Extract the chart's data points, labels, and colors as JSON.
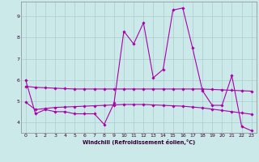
{
  "title": "",
  "xlabel": "Windchill (Refroidissement éolien,°C)",
  "ylabel": "",
  "xlim": [
    -0.5,
    23.5
  ],
  "ylim": [
    3.5,
    9.7
  ],
  "yticks": [
    4,
    5,
    6,
    7,
    8,
    9
  ],
  "xticks": [
    0,
    1,
    2,
    3,
    4,
    5,
    6,
    7,
    8,
    9,
    10,
    11,
    12,
    13,
    14,
    15,
    16,
    17,
    18,
    19,
    20,
    21,
    22,
    23
  ],
  "bg_color": "#cce9ea",
  "grid_color": "#aacccc",
  "line_color": "#aa00aa",
  "line1_x": [
    0,
    1,
    2,
    3,
    4,
    5,
    6,
    7,
    8,
    9,
    10,
    11,
    12,
    13,
    14,
    15,
    16,
    17,
    18,
    19,
    20,
    21,
    22,
    23
  ],
  "line1_y": [
    6.0,
    4.4,
    4.6,
    4.5,
    4.5,
    4.4,
    4.4,
    4.4,
    3.9,
    4.9,
    8.3,
    7.7,
    8.7,
    6.1,
    6.5,
    9.3,
    9.4,
    7.5,
    5.5,
    4.8,
    4.8,
    6.2,
    3.8,
    3.6
  ],
  "line2_x": [
    0,
    1,
    2,
    3,
    4,
    5,
    6,
    7,
    8,
    9,
    10,
    11,
    12,
    13,
    14,
    15,
    16,
    17,
    18,
    19,
    20,
    21,
    22,
    23
  ],
  "line2_y": [
    5.7,
    5.65,
    5.63,
    5.61,
    5.59,
    5.57,
    5.57,
    5.57,
    5.57,
    5.57,
    5.57,
    5.57,
    5.57,
    5.57,
    5.57,
    5.57,
    5.57,
    5.57,
    5.57,
    5.55,
    5.53,
    5.51,
    5.49,
    5.47
  ],
  "line3_x": [
    0,
    1,
    2,
    3,
    4,
    5,
    6,
    7,
    8,
    9,
    10,
    11,
    12,
    13,
    14,
    15,
    16,
    17,
    18,
    19,
    20,
    21,
    22,
    23
  ],
  "line3_y": [
    4.95,
    4.6,
    4.65,
    4.7,
    4.72,
    4.74,
    4.76,
    4.78,
    4.8,
    4.82,
    4.84,
    4.84,
    4.84,
    4.82,
    4.8,
    4.78,
    4.76,
    4.72,
    4.68,
    4.62,
    4.56,
    4.5,
    4.44,
    4.38
  ]
}
